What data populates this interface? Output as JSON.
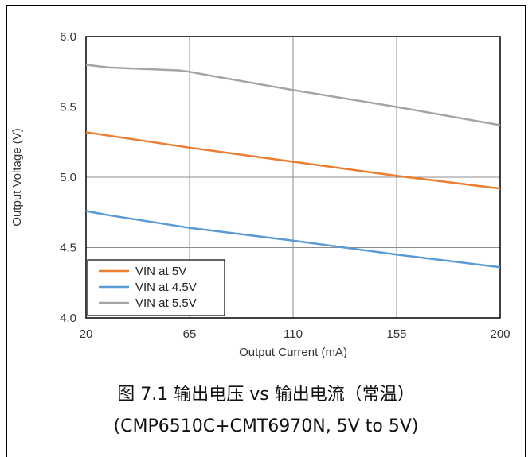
{
  "chart_data": {
    "type": "line",
    "xlabel": "Output Current (mA)",
    "ylabel": "Output Voltage (V)",
    "xlim": [
      20,
      200
    ],
    "ylim": [
      4.0,
      6.0
    ],
    "x_ticks": [
      "20",
      "65",
      "110",
      "155",
      "200"
    ],
    "y_ticks": [
      "4.0",
      "4.5",
      "5.0",
      "5.5",
      "6.0"
    ],
    "grid": true,
    "legend_position": "bottom-left",
    "series": [
      {
        "name": "VIN at 5V",
        "color": "#ED7D31",
        "x": [
          20,
          65,
          110,
          155,
          200
        ],
        "y": [
          5.32,
          5.21,
          5.11,
          5.01,
          4.92
        ]
      },
      {
        "name": "VIN at 4.5V",
        "color": "#5B9BD5",
        "x": [
          20,
          30,
          65,
          110,
          155,
          200
        ],
        "y": [
          4.76,
          4.73,
          4.64,
          4.55,
          4.45,
          4.36
        ]
      },
      {
        "name": "VIN at 5.5V",
        "color": "#A5A5A5",
        "x": [
          20,
          30,
          45,
          60,
          65,
          75,
          110,
          155,
          200
        ],
        "y": [
          5.8,
          5.78,
          5.77,
          5.76,
          5.75,
          5.72,
          5.62,
          5.5,
          5.37
        ]
      }
    ]
  },
  "caption": {
    "line1": "图 7.1 输出电压 vs 输出电流（常温）",
    "line2": "(CMP6510C+CMT6970N, 5V to 5V)"
  }
}
